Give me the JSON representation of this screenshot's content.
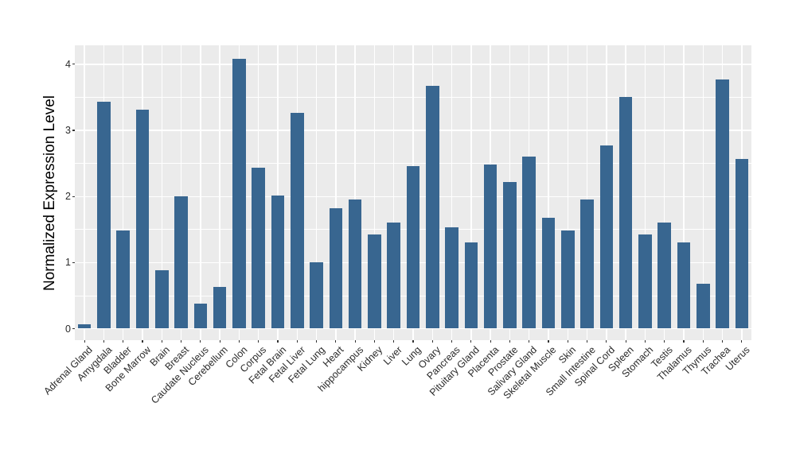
{
  "chart_data": {
    "type": "bar",
    "title": "",
    "xlabel": "",
    "ylabel": "Normalized Expression Level",
    "ylim": [
      -0.18,
      4.29
    ],
    "yticks": [
      0,
      1,
      2,
      3,
      4
    ],
    "minor_yticks": [
      0.5,
      1.5,
      2.5,
      3.5
    ],
    "grid": "on",
    "legend_position": "none",
    "bar_color": "#386690",
    "panel_background": "#EBEBEB",
    "gridline_color": "#FFFFFF",
    "tick_color": "#333333",
    "categories": [
      "Adrenal Gland",
      "Amygdala",
      "Bladder",
      "Bone Marrow",
      "Brain",
      "Breast",
      "Caudate Nucleus",
      "Cerebellum",
      "Colon",
      "Corpus",
      "Fetal Brain",
      "Fetal Liver",
      "Fetal Lung",
      "Heart",
      "hippocampus",
      "Kidney",
      "Liver",
      "Lung",
      "Ovary",
      "Pancreas",
      "Pituitary Gland",
      "Placenta",
      "Prostate",
      "Salivary Gland",
      "Skeletal Muscle",
      "Skin",
      "Small Intestine",
      "Spinal Cord",
      "Spleen",
      "Stomach",
      "Testis",
      "Thalamus",
      "Thymus",
      "Trachea",
      "Uterus"
    ],
    "values": [
      0.07,
      3.43,
      1.48,
      3.31,
      0.88,
      2.0,
      0.38,
      0.63,
      4.08,
      2.44,
      2.02,
      3.27,
      1.0,
      1.82,
      1.95,
      1.43,
      1.6,
      2.46,
      3.67,
      1.53,
      1.31,
      2.48,
      2.22,
      2.6,
      1.68,
      1.48,
      1.96,
      2.77,
      3.5,
      1.43,
      1.6,
      1.31,
      0.68,
      3.77,
      2.57
    ]
  }
}
